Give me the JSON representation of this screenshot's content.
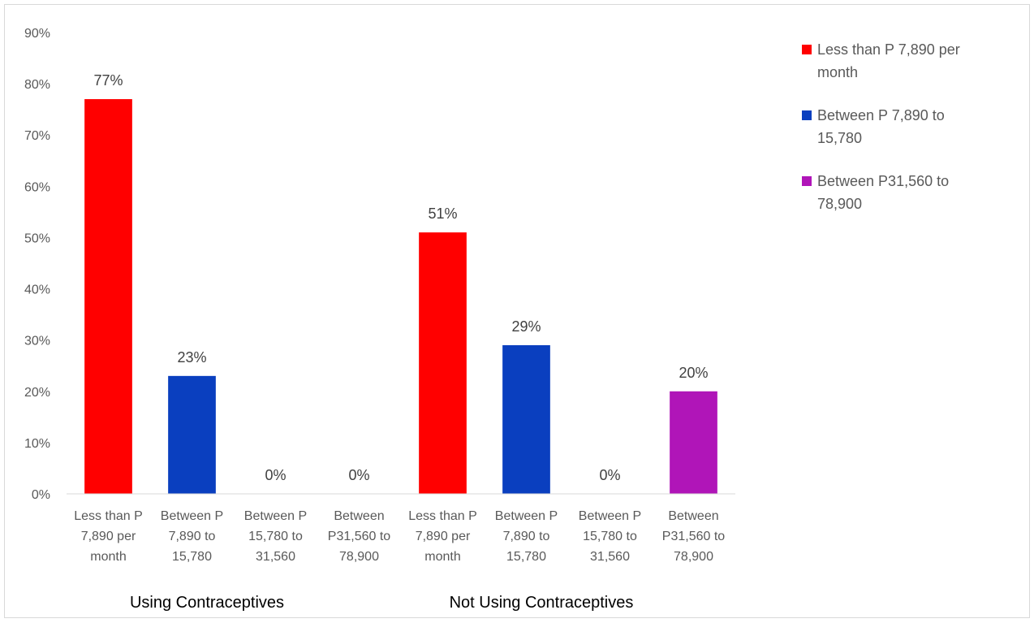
{
  "chart_data": {
    "type": "bar",
    "title": "",
    "xlabel": "",
    "ylabel": "",
    "ylim": [
      0,
      90
    ],
    "ytick_step": 10,
    "ytick_format": "percent",
    "grid": false,
    "legend_position": "right",
    "groups": [
      "Using Contraceptives",
      "Not Using Contraceptives"
    ],
    "categories": [
      [
        "Less than P",
        "7,890 per",
        "month"
      ],
      [
        "Between P",
        "7,890 to",
        "15,780"
      ],
      [
        "Between P",
        "15,780 to",
        "31,560"
      ],
      [
        "Between",
        "P31,560 to",
        "78,900"
      ],
      [
        "Less than P",
        "7,890 per",
        "month"
      ],
      [
        "Between P",
        "7,890 to",
        "15,780"
      ],
      [
        "Between P",
        "15,780 to",
        "31,560"
      ],
      [
        "Between",
        "P31,560 to",
        "78,900"
      ]
    ],
    "values": [
      77,
      23,
      0,
      0,
      51,
      29,
      0,
      20
    ],
    "data_labels": [
      "77%",
      "23%",
      "0%",
      "0%",
      "51%",
      "29%",
      "0%",
      "20%"
    ],
    "series": [
      {
        "name": [
          "Less than P 7,890 per",
          "month"
        ],
        "color": "#ff0000"
      },
      {
        "name": [
          "Between P 7,890 to",
          "15,780"
        ],
        "color": "#0a3fbf"
      },
      {
        "name": [
          "Between P15,780 to",
          "31,560"
        ],
        "color": "#7f7f7f"
      },
      {
        "name": [
          "Between P31,560 to",
          "78,900"
        ],
        "color": "#b015b8"
      }
    ],
    "bar_series_index": [
      0,
      1,
      2,
      3,
      0,
      1,
      2,
      3
    ],
    "legend_series_index": [
      0,
      1,
      3
    ]
  }
}
